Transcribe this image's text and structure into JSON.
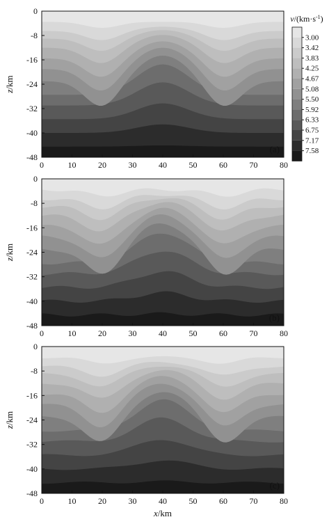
{
  "chart_data": [
    {
      "type": "heatmap",
      "panel_label": "(a)",
      "xlabel": "",
      "ylabel": "z/km",
      "xlim": [
        0,
        80
      ],
      "ylim": [
        -48,
        0
      ],
      "xticks": [
        "0",
        "10",
        "20",
        "30",
        "40",
        "50",
        "60",
        "70",
        "80"
      ],
      "yticks": [
        "0",
        "-8",
        "-16",
        "-24",
        "-32",
        "-40",
        "-48"
      ],
      "grid": false
    },
    {
      "type": "heatmap",
      "panel_label": "(b)",
      "xlabel": "",
      "ylabel": "z/km",
      "xlim": [
        0,
        80
      ],
      "ylim": [
        -48,
        0
      ],
      "xticks": [
        "0",
        "10",
        "20",
        "30",
        "40",
        "50",
        "60",
        "70",
        "80"
      ],
      "yticks": [
        "0",
        "-8",
        "-16",
        "-24",
        "-32",
        "-40",
        "-48"
      ],
      "grid": false
    },
    {
      "type": "heatmap",
      "panel_label": "(c)",
      "xlabel": "x/km",
      "ylabel": "z/km",
      "xlim": [
        0,
        80
      ],
      "ylim": [
        -48,
        0
      ],
      "xticks": [
        "0",
        "10",
        "20",
        "30",
        "40",
        "50",
        "60",
        "70",
        "80"
      ],
      "yticks": [
        "0",
        "-8",
        "-16",
        "-24",
        "-32",
        "-40",
        "-48"
      ],
      "grid": false
    }
  ],
  "colorbar": {
    "title_var": "v",
    "title_unit": "/(km·s",
    "title_sup": "-1",
    "title_close": ")",
    "levels": [
      "3.00",
      "3.42",
      "3.83",
      "4.25",
      "4.67",
      "5.08",
      "5.50",
      "5.92",
      "6.33",
      "6.75",
      "7.17",
      "7.58"
    ],
    "colors": [
      "#e6e6e6",
      "#d9d9d9",
      "#cbcbcb",
      "#bebebe",
      "#b0b0b0",
      "#a1a1a1",
      "#919191",
      "#7f7f7f",
      "#6d6d6d",
      "#595959",
      "#444444",
      "#2c2c2c",
      "#1a1a1a"
    ]
  }
}
